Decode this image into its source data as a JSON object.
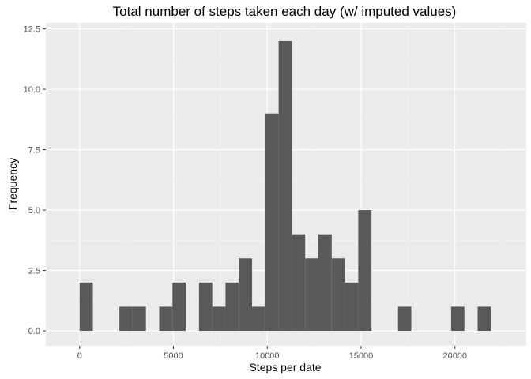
{
  "chart_data": {
    "type": "bar",
    "title": "Total number of steps taken each day (w/ imputed values)",
    "xlabel": "Steps per date",
    "ylabel": "Frequency",
    "xlim": [
      -1800,
      23800
    ],
    "ylim": [
      -0.62,
      12.75
    ],
    "x_ticks": [
      0,
      5000,
      10000,
      15000,
      20000
    ],
    "x_tick_labels": [
      "0",
      "5000",
      "10000",
      "15000",
      "20000"
    ],
    "y_ticks": [
      0,
      2.5,
      5,
      7.5,
      10,
      12.5
    ],
    "y_tick_labels": [
      "0.0",
      "2.5",
      "5.0",
      "7.5",
      "10.0",
      "12.5"
    ],
    "bin_width": 707,
    "bin_start": 0,
    "values": [
      2,
      0,
      0,
      1,
      1,
      0,
      1,
      2,
      0,
      2,
      1,
      2,
      3,
      1,
      9,
      12,
      4,
      3,
      4,
      3,
      2,
      5,
      0,
      0,
      1,
      0,
      0,
      0,
      1,
      0,
      1
    ],
    "grid": true,
    "legend": "none",
    "colors": {
      "bar": "#595959",
      "panel": "#ebebeb",
      "grid_major": "#ffffff",
      "grid_minor": "#f5f5f5",
      "tick_text": "#4d4d4d",
      "tick_mark": "#333333"
    }
  }
}
